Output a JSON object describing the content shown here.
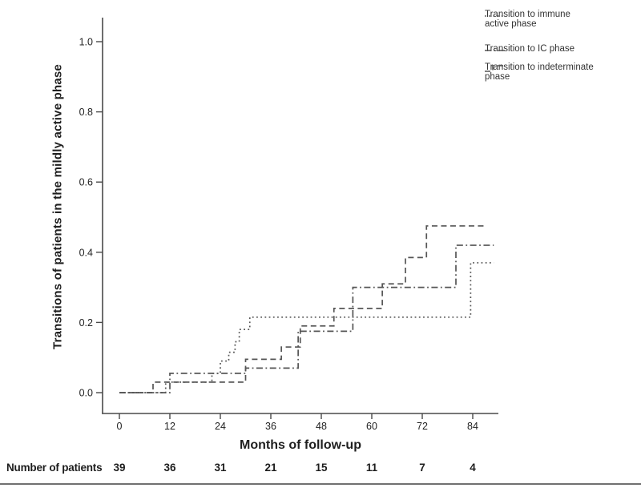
{
  "chart_data": {
    "type": "line",
    "subtype": "kaplan-meier-step",
    "title": "",
    "xlabel": "Months of follow-up",
    "ylabel": "Transitions of patients in the mildly active phase",
    "xlim": [
      0,
      90
    ],
    "ylim": [
      0,
      1.05
    ],
    "x_ticks": [
      0,
      12,
      24,
      36,
      48,
      60,
      72,
      84
    ],
    "y_ticks": [
      "0.0",
      "0.2",
      "0.4",
      "0.6",
      "0.8",
      "1.0"
    ],
    "y_tick_values": [
      0,
      0.2,
      0.4,
      0.6,
      0.8,
      1.0
    ],
    "grid": false,
    "legend_position": "top-right",
    "axis_color": "#4a4a4a",
    "tick_label_color": "#222222",
    "series": [
      {
        "name": "Transition to immune active phase",
        "style": "dotted",
        "color": "#555555",
        "points": [
          [
            0,
            0
          ],
          [
            11,
            0.03
          ],
          [
            22,
            0.055
          ],
          [
            24,
            0.09
          ],
          [
            26,
            0.115
          ],
          [
            27.5,
            0.145
          ],
          [
            28.5,
            0.18
          ],
          [
            31,
            0.215
          ],
          [
            83.5,
            0.37
          ],
          [
            89,
            0.37
          ]
        ]
      },
      {
        "name": "Transition to IC phase",
        "style": "dash-dot",
        "color": "#555555",
        "points": [
          [
            0,
            0
          ],
          [
            12,
            0.055
          ],
          [
            30,
            0.07
          ],
          [
            42.5,
            0.175
          ],
          [
            55.5,
            0.3
          ],
          [
            80,
            0.42
          ],
          [
            89,
            0.42
          ]
        ]
      },
      {
        "name": "Transition to indeterminate phase",
        "style": "dashed",
        "color": "#555555",
        "points": [
          [
            0,
            0
          ],
          [
            8,
            0.03
          ],
          [
            30,
            0.095
          ],
          [
            38.5,
            0.13
          ],
          [
            43,
            0.19
          ],
          [
            51,
            0.24
          ],
          [
            62.5,
            0.31
          ],
          [
            68,
            0.385
          ],
          [
            73,
            0.475
          ],
          [
            87,
            0.475
          ]
        ]
      }
    ]
  },
  "risk_table": {
    "label": "Number of patients",
    "months": [
      0,
      12,
      24,
      36,
      48,
      60,
      72,
      84
    ],
    "values": [
      "39",
      "36",
      "31",
      "21",
      "15",
      "11",
      "7",
      "4"
    ]
  }
}
